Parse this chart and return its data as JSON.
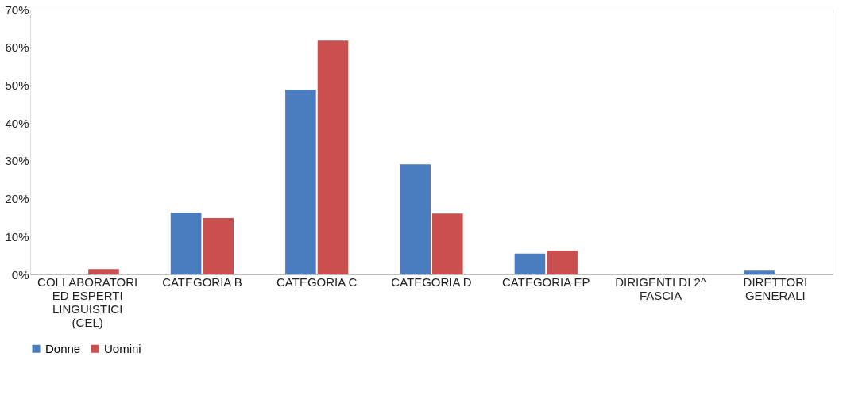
{
  "chart_data": {
    "type": "bar",
    "categories": [
      "COLLABORATORI ED ESPERTI LINGUISTICI (CEL)",
      "CATEGORIA B",
      "CATEGORIA C",
      "CATEGORIA D",
      "CATEGORIA EP",
      "DIRIGENTI DI 2^ FASCIA",
      "DIRETTORI GENERALI"
    ],
    "series": [
      {
        "name": "Donne",
        "color": "#4a7dc0",
        "values": [
          0,
          16.3,
          48.8,
          29.1,
          5.5,
          0,
          1.0
        ]
      },
      {
        "name": "Uomini",
        "color": "#c9504e",
        "values": [
          1.4,
          14.9,
          61.8,
          16.1,
          6.3,
          0,
          0
        ]
      }
    ],
    "ylim": [
      0,
      70
    ],
    "yticks": [
      {
        "value": 0,
        "label": "0%"
      },
      {
        "value": 10,
        "label": "10%"
      },
      {
        "value": 20,
        "label": "20%"
      },
      {
        "value": 30,
        "label": "30%"
      },
      {
        "value": 40,
        "label": "40%"
      },
      {
        "value": 50,
        "label": "50%"
      },
      {
        "value": 60,
        "label": "60%"
      },
      {
        "value": 70,
        "label": "70%"
      }
    ],
    "grid": false,
    "legend": "bottom"
  }
}
